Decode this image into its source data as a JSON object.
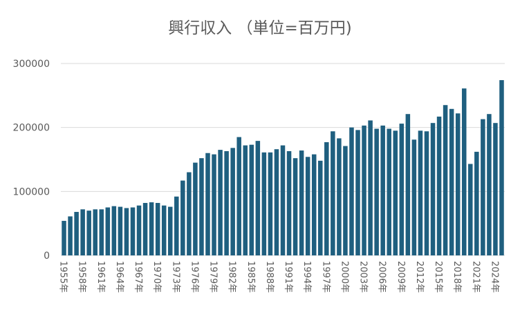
{
  "chart_data": {
    "type": "bar",
    "title": "興行収入 （単位=百万円)",
    "xlabel": "",
    "ylabel": "",
    "ylim": [
      0,
      300000
    ],
    "yticks": [
      "0",
      "100000",
      "200000",
      "300000"
    ],
    "grid": true,
    "legend": "none",
    "bar_color": "#1f5f7f",
    "categories": [
      "1955年",
      "1956年",
      "1957年",
      "1958年",
      "1959年",
      "1960年",
      "1961年",
      "1962年",
      "1963年",
      "1964年",
      "1965年",
      "1966年",
      "1967年",
      "1968年",
      "1969年",
      "1970年",
      "1971年",
      "1972年",
      "1973年",
      "1974年",
      "1975年",
      "1976年",
      "1977年",
      "1978年",
      "1979年",
      "1980年",
      "1981年",
      "1982年",
      "1983年",
      "1984年",
      "1985年",
      "1986年",
      "1987年",
      "1988年",
      "1989年",
      "1990年",
      "1991年",
      "1992年",
      "1993年",
      "1994年",
      "1995年",
      "1996年",
      "1997年",
      "1998年",
      "1999年",
      "2000年",
      "2001年",
      "2002年",
      "2003年",
      "2004年",
      "2005年",
      "2006年",
      "2007年",
      "2008年",
      "2009年",
      "2010年",
      "2011年",
      "2012年",
      "2013年",
      "2014年",
      "2015年",
      "2016年",
      "2017年",
      "2018年",
      "2019年",
      "2020年",
      "2021年",
      "2022年",
      "2023年",
      "2024年",
      "2025年"
    ],
    "x_tick_labels": [
      "1955年",
      "1958年",
      "1961年",
      "1964年",
      "1967年",
      "1970年",
      "1973年",
      "1976年",
      "1979年",
      "1982年",
      "1985年",
      "1988年",
      "1991年",
      "1994年",
      "1997年",
      "2000年",
      "2003年",
      "2006年",
      "2009年",
      "2012年",
      "2015年",
      "2018年",
      "2021年",
      "2024年"
    ],
    "values": [
      54000,
      61000,
      68000,
      72000,
      70000,
      72000,
      72000,
      75000,
      77000,
      76000,
      74000,
      75000,
      78000,
      82000,
      83000,
      82000,
      78000,
      76000,
      92000,
      117000,
      130000,
      145000,
      152000,
      160000,
      158000,
      165000,
      163000,
      168000,
      185000,
      172000,
      173000,
      179000,
      161000,
      161000,
      166000,
      172000,
      163000,
      152000,
      164000,
      154000,
      158000,
      148000,
      177000,
      194000,
      183000,
      171000,
      200000,
      196000,
      203000,
      211000,
      198000,
      203000,
      198000,
      195000,
      206000,
      221000,
      181000,
      195000,
      194000,
      207000,
      217000,
      235000,
      229000,
      222000,
      261000,
      143000,
      162000,
      213000,
      221000,
      207000,
      274000
    ]
  }
}
